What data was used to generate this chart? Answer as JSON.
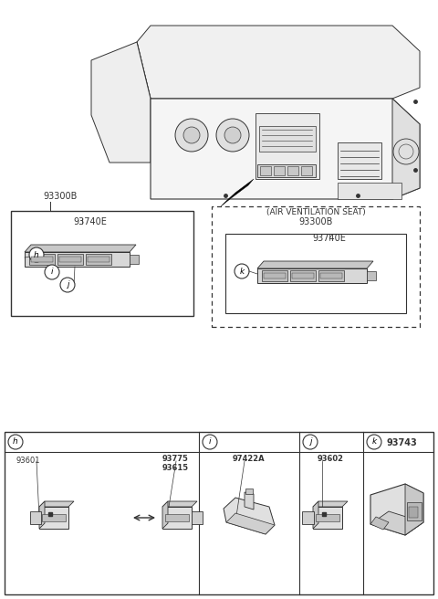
{
  "bg_color": "#ffffff",
  "line_color": "#333333",
  "upper_box_label": "93300B",
  "upper_box_inner_label": "93740E",
  "dashed_box_title": "(AIR VENTILATION SEAT)",
  "dashed_box_label": "93300B",
  "dashed_box_inner_label": "93740E",
  "part_h_label1": "93601",
  "part_h_label2": "93775",
  "part_h_label3": "93615",
  "part_i_label": "97422A",
  "part_j_label": "93602",
  "part_k_label": "93743"
}
